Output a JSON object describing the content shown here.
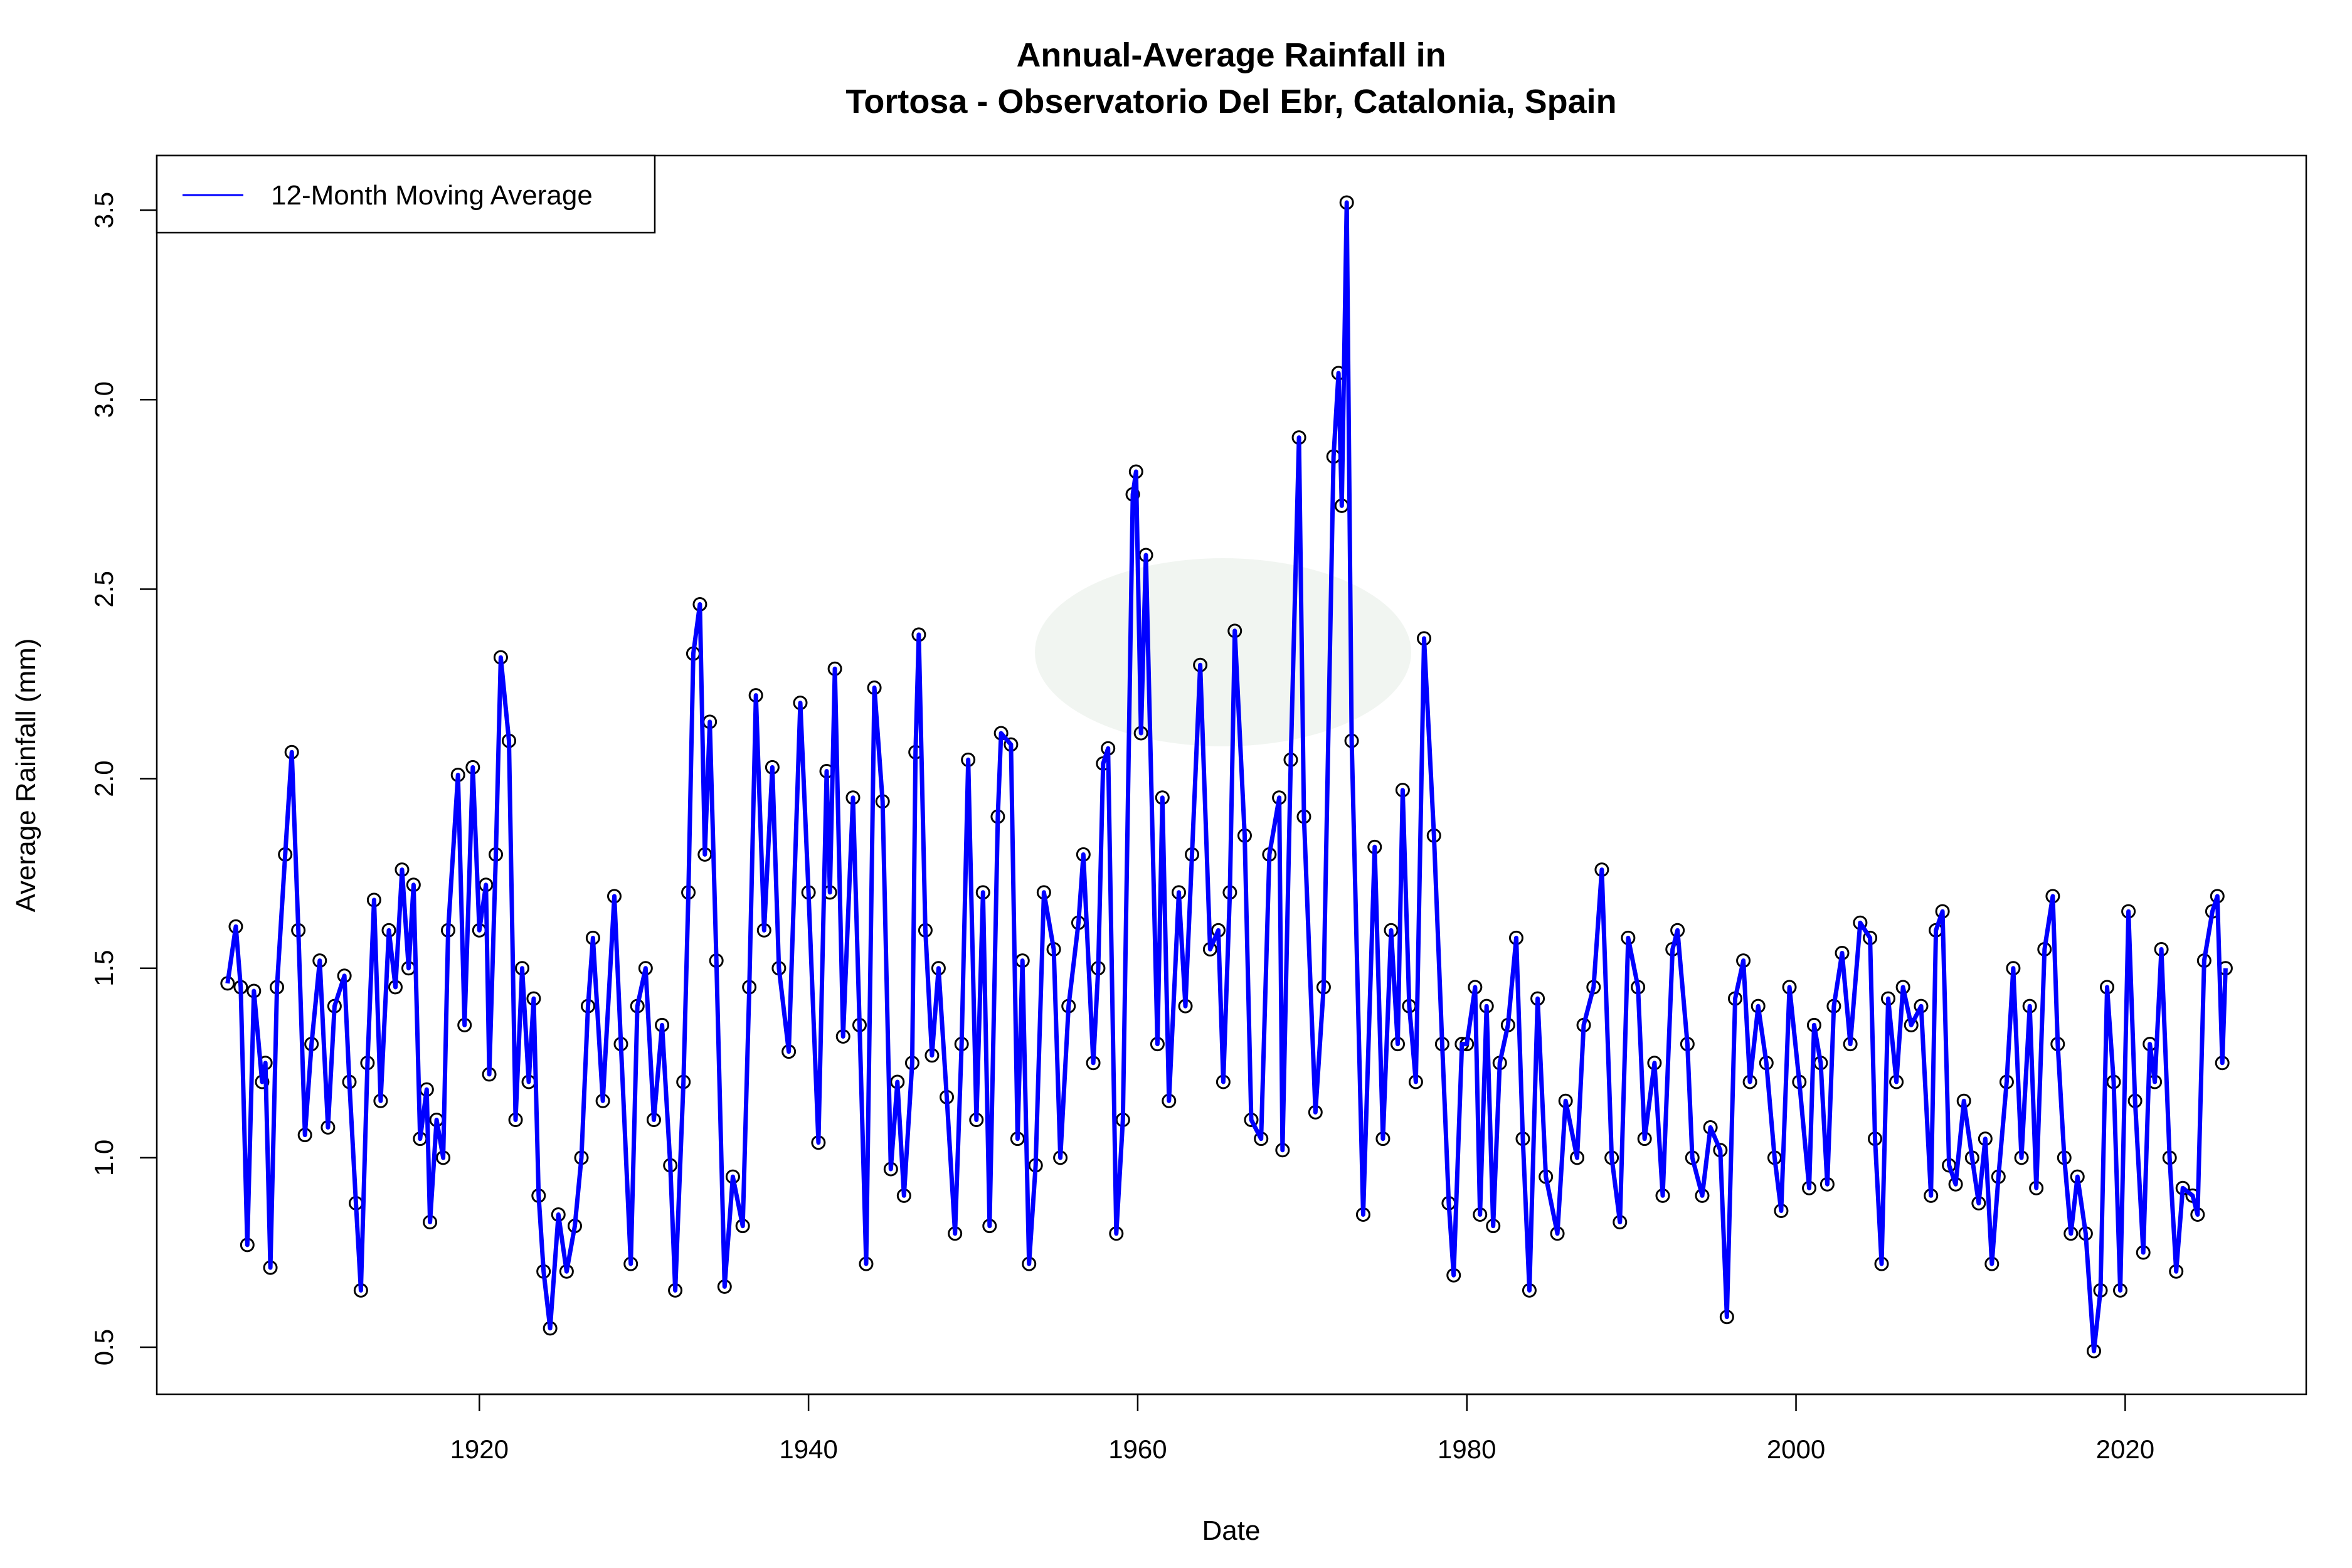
{
  "chart_data": {
    "type": "line",
    "title": "Annual-Average Rainfall in",
    "subtitle": "Tortosa - Observatorio Del Ebr, Catalonia, Spain",
    "xlabel": "Date",
    "ylabel": "Average Rainfall (mm)",
    "xlim": [
      1900.4,
      2031.0
    ],
    "ylim": [
      0.376,
      3.644
    ],
    "xticks": [
      1920,
      1940,
      1960,
      1980,
      2000,
      2020
    ],
    "xtick_labels": [
      "1920",
      "1940",
      "1960",
      "1980",
      "2000",
      "2020"
    ],
    "yticks": [
      0.5,
      1.0,
      1.5,
      2.0,
      2.5,
      3.0,
      3.5
    ],
    "ytick_labels": [
      "0.5",
      "1.0",
      "1.5",
      "2.0",
      "2.5",
      "3.0",
      "3.5"
    ],
    "grid": false,
    "legend": {
      "placement": "top-left",
      "entries": [
        "12-Month Moving Average"
      ]
    },
    "colors": {
      "line": "#0000ff",
      "points": "#000000"
    },
    "series": [
      {
        "name": "12-Month Moving Average",
        "markers": "open-circle",
        "x": [
          1904.7,
          1905.2,
          1905.5,
          1905.9,
          1906.3,
          1906.8,
          1907.0,
          1907.3,
          1907.7,
          1908.2,
          1908.6,
          1909.0,
          1909.4,
          1909.8,
          1910.3,
          1910.8,
          1911.2,
          1911.8,
          1912.1,
          1912.5,
          1912.8,
          1913.2,
          1913.6,
          1914.0,
          1914.5,
          1914.9,
          1915.3,
          1915.7,
          1916.0,
          1916.4,
          1916.8,
          1917.0,
          1917.4,
          1917.8,
          1918.1,
          1918.7,
          1919.1,
          1919.6,
          1920.0,
          1920.4,
          1920.6,
          1921.0,
          1921.3,
          1921.8,
          1922.2,
          1922.6,
          1923.0,
          1923.3,
          1923.6,
          1923.9,
          1924.3,
          1924.8,
          1925.3,
          1925.8,
          1926.2,
          1926.6,
          1926.9,
          1927.5,
          1928.2,
          1928.6,
          1929.2,
          1929.6,
          1930.1,
          1930.6,
          1931.1,
          1931.6,
          1931.9,
          1932.4,
          1932.7,
          1933.0,
          1933.4,
          1933.7,
          1934.0,
          1934.4,
          1934.9,
          1935.4,
          1936.0,
          1936.4,
          1936.8,
          1937.3,
          1937.8,
          1938.2,
          1938.8,
          1939.5,
          1940.0,
          1940.6,
          1941.1,
          1941.3,
          1941.6,
          1942.1,
          1942.7,
          1943.1,
          1943.5,
          1944.0,
          1944.5,
          1945.0,
          1945.4,
          1945.8,
          1946.3,
          1946.5,
          1946.7,
          1947.1,
          1947.5,
          1947.9,
          1948.4,
          1948.9,
          1949.3,
          1949.7,
          1950.2,
          1950.6,
          1951.0,
          1951.5,
          1951.7,
          1952.3,
          1952.7,
          1953.0,
          1953.4,
          1953.8,
          1954.3,
          1954.9,
          1955.3,
          1955.8,
          1956.4,
          1956.7,
          1957.3,
          1957.6,
          1957.9,
          1958.2,
          1958.7,
          1959.1,
          1959.7,
          1959.9,
          1960.2,
          1960.5,
          1961.2,
          1961.5,
          1961.9,
          1962.5,
          1962.9,
          1963.3,
          1963.8,
          1964.4,
          1964.9,
          1965.2,
          1965.6,
          1965.9,
          1966.5,
          1966.9,
          1967.5,
          1968.0,
          1968.6,
          1968.8,
          1969.3,
          1969.8,
          1970.1,
          1970.8,
          1971.3,
          1971.9,
          1972.2,
          1972.4,
          1972.7,
          1973.0,
          1973.7,
          1974.4,
          1974.9,
          1975.4,
          1975.8,
          1976.1,
          1976.5,
          1976.9,
          1977.4,
          1978.0,
          1978.5,
          1978.9,
          1979.2,
          1979.7,
          1980.0,
          1980.5,
          1980.8,
          1981.2,
          1981.6,
          1982.0,
          1982.5,
          1983.0,
          1983.4,
          1983.8,
          1984.3,
          1984.8,
          1985.5,
          1986.0,
          1986.7,
          1987.1,
          1987.7,
          1988.2,
          1988.8,
          1989.3,
          1989.8,
          1990.4,
          1990.8,
          1991.4,
          1991.9,
          1992.5,
          1992.8,
          1993.4,
          1993.7,
          1994.3,
          1994.8,
          1995.4,
          1995.8,
          1996.3,
          1996.8,
          1997.2,
          1997.7,
          1998.2,
          1998.7,
          1999.1,
          1999.6,
          2000.2,
          2000.8,
          2001.1,
          2001.5,
          2001.9,
          2002.3,
          2002.8,
          2003.3,
          2003.9,
          2004.5,
          2004.8,
          2005.2,
          2005.6,
          2006.1,
          2006.5,
          2007.0,
          2007.6,
          2008.2,
          2008.5,
          2008.9,
          2009.3,
          2009.7,
          2010.2,
          2010.7,
          2011.1,
          2011.5,
          2011.9,
          2012.3,
          2012.8,
          2013.2,
          2013.7,
          2014.2,
          2014.6,
          2015.1,
          2015.6,
          2015.9,
          2016.3,
          2016.7,
          2017.1,
          2017.6,
          2018.1,
          2018.5,
          2018.9,
          2019.3,
          2019.7,
          2020.2,
          2020.6,
          2021.1,
          2021.5,
          2021.8,
          2022.2,
          2022.7,
          2023.1,
          2023.5,
          2024.1,
          2024.4,
          2024.8,
          2025.3,
          2025.6,
          2025.9,
          2026.1
        ],
        "y": [
          1.46,
          1.61,
          1.45,
          0.77,
          1.44,
          1.2,
          1.25,
          0.71,
          1.45,
          1.8,
          2.07,
          1.6,
          1.06,
          1.3,
          1.52,
          1.08,
          1.4,
          1.48,
          1.2,
          0.88,
          0.65,
          1.25,
          1.68,
          1.15,
          1.6,
          1.45,
          1.76,
          1.5,
          1.72,
          1.05,
          1.18,
          0.83,
          1.1,
          1.0,
          1.6,
          2.01,
          1.35,
          2.03,
          1.6,
          1.72,
          1.22,
          1.8,
          2.32,
          2.1,
          1.1,
          1.5,
          1.2,
          1.42,
          0.9,
          0.7,
          0.55,
          0.85,
          0.7,
          0.82,
          1.0,
          1.4,
          1.58,
          1.15,
          1.69,
          1.3,
          0.72,
          1.4,
          1.5,
          1.1,
          1.35,
          0.98,
          0.65,
          1.2,
          1.7,
          2.33,
          2.46,
          1.8,
          2.15,
          1.52,
          0.66,
          0.95,
          0.82,
          1.45,
          2.22,
          1.6,
          2.03,
          1.5,
          1.28,
          2.2,
          1.7,
          1.04,
          2.02,
          1.7,
          2.29,
          1.32,
          1.95,
          1.35,
          0.72,
          2.24,
          1.94,
          0.97,
          1.2,
          0.9,
          1.25,
          2.07,
          2.38,
          1.6,
          1.27,
          1.5,
          1.16,
          0.8,
          1.3,
          2.05,
          1.1,
          1.7,
          0.82,
          1.9,
          2.12,
          2.09,
          1.05,
          1.52,
          0.72,
          0.98,
          1.7,
          1.55,
          1.0,
          1.4,
          1.62,
          1.8,
          1.25,
          1.5,
          2.04,
          2.08,
          0.8,
          1.1,
          2.75,
          2.81,
          2.12,
          2.59,
          1.3,
          1.95,
          1.15,
          1.7,
          1.4,
          1.8,
          2.3,
          1.55,
          1.6,
          1.2,
          1.7,
          2.39,
          1.85,
          1.1,
          1.05,
          1.8,
          1.95,
          1.02,
          2.05,
          2.9,
          1.9,
          1.12,
          1.45,
          2.85,
          3.07,
          2.72,
          3.52,
          2.1,
          0.85,
          1.82,
          1.05,
          1.6,
          1.3,
          1.97,
          1.4,
          1.2,
          2.37,
          1.85,
          1.3,
          0.88,
          0.69,
          1.3,
          1.3,
          1.45,
          0.85,
          1.4,
          0.82,
          1.25,
          1.35,
          1.58,
          1.05,
          0.65,
          1.42,
          0.95,
          0.8,
          1.15,
          1.0,
          1.35,
          1.45,
          1.76,
          1.0,
          0.83,
          1.58,
          1.45,
          1.05,
          1.25,
          0.9,
          1.55,
          1.6,
          1.3,
          1.0,
          0.9,
          1.08,
          1.02,
          0.58,
          1.42,
          1.52,
          1.2,
          1.4,
          1.25,
          1.0,
          0.86,
          1.45,
          1.2,
          0.92,
          1.35,
          1.25,
          0.93,
          1.4,
          1.54,
          1.3,
          1.62,
          1.58,
          1.05,
          0.72,
          1.42,
          1.2,
          1.45,
          1.35,
          1.4,
          0.9,
          1.6,
          1.65,
          0.98,
          0.93,
          1.15,
          1.0,
          0.88,
          1.05,
          0.72,
          0.95,
          1.2,
          1.5,
          1.0,
          1.4,
          0.92,
          1.55,
          1.69,
          1.3,
          1.0,
          0.8,
          0.95,
          0.8,
          0.49,
          0.65,
          1.45,
          1.2,
          0.65,
          1.65,
          1.15,
          0.75,
          1.3,
          1.2,
          1.55,
          1.0,
          0.7,
          0.92,
          0.9,
          0.85,
          1.52,
          1.65,
          1.69,
          1.25,
          1.5
        ]
      }
    ]
  }
}
